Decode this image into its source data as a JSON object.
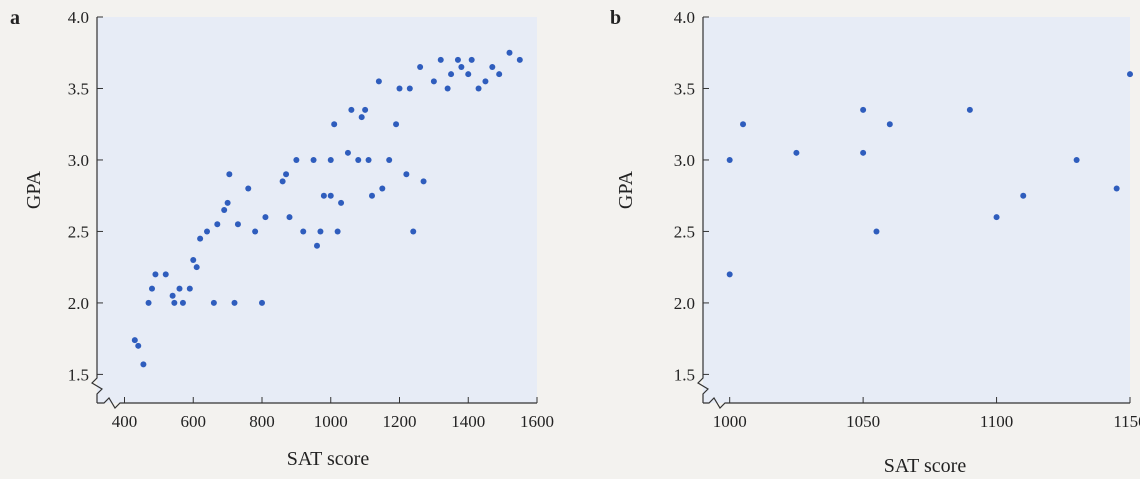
{
  "chart_data": [
    {
      "panel": "a",
      "type": "scatter",
      "xlabel": "SAT score",
      "ylabel": "GPA",
      "xlim": [
        320,
        1600
      ],
      "ylim": [
        1.3,
        4.0
      ],
      "xticks": [
        400,
        600,
        800,
        1000,
        1200,
        1400,
        1600
      ],
      "yticks": [
        1.5,
        2.0,
        2.5,
        3.0,
        3.5,
        4.0
      ],
      "ytick_labels": [
        "1.5",
        "2.0",
        "2.5",
        "3.0",
        "3.5",
        "4.0"
      ],
      "axis_break": "both",
      "grid": false,
      "points": [
        [
          430,
          1.74
        ],
        [
          440,
          1.7
        ],
        [
          455,
          1.57
        ],
        [
          470,
          2.0
        ],
        [
          480,
          2.1
        ],
        [
          490,
          2.2
        ],
        [
          520,
          2.2
        ],
        [
          540,
          2.05
        ],
        [
          545,
          2.0
        ],
        [
          560,
          2.1
        ],
        [
          570,
          2.0
        ],
        [
          590,
          2.1
        ],
        [
          600,
          2.3
        ],
        [
          610,
          2.25
        ],
        [
          620,
          2.45
        ],
        [
          640,
          2.5
        ],
        [
          660,
          2.0
        ],
        [
          670,
          2.55
        ],
        [
          690,
          2.65
        ],
        [
          700,
          2.7
        ],
        [
          705,
          2.9
        ],
        [
          720,
          2.0
        ],
        [
          730,
          2.55
        ],
        [
          760,
          2.8
        ],
        [
          780,
          2.5
        ],
        [
          800,
          2.0
        ],
        [
          810,
          2.6
        ],
        [
          860,
          2.85
        ],
        [
          870,
          2.9
        ],
        [
          880,
          2.6
        ],
        [
          900,
          3.0
        ],
        [
          920,
          2.5
        ],
        [
          950,
          3.0
        ],
        [
          960,
          2.4
        ],
        [
          970,
          2.5
        ],
        [
          980,
          2.75
        ],
        [
          1000,
          2.75
        ],
        [
          1000,
          3.0
        ],
        [
          1010,
          3.25
        ],
        [
          1020,
          2.5
        ],
        [
          1030,
          2.7
        ],
        [
          1050,
          3.05
        ],
        [
          1060,
          3.35
        ],
        [
          1080,
          3.0
        ],
        [
          1090,
          3.3
        ],
        [
          1100,
          3.35
        ],
        [
          1110,
          3.0
        ],
        [
          1120,
          2.75
        ],
        [
          1140,
          3.55
        ],
        [
          1150,
          2.8
        ],
        [
          1170,
          3.0
        ],
        [
          1190,
          3.25
        ],
        [
          1200,
          3.5
        ],
        [
          1220,
          2.9
        ],
        [
          1230,
          3.5
        ],
        [
          1240,
          2.5
        ],
        [
          1260,
          3.65
        ],
        [
          1270,
          2.85
        ],
        [
          1300,
          3.55
        ],
        [
          1320,
          3.7
        ],
        [
          1340,
          3.5
        ],
        [
          1350,
          3.6
        ],
        [
          1370,
          3.7
        ],
        [
          1380,
          3.65
        ],
        [
          1400,
          3.6
        ],
        [
          1410,
          3.7
        ],
        [
          1430,
          3.5
        ],
        [
          1450,
          3.55
        ],
        [
          1470,
          3.65
        ],
        [
          1490,
          3.6
        ],
        [
          1520,
          3.75
        ],
        [
          1550,
          3.7
        ]
      ]
    },
    {
      "panel": "b",
      "type": "scatter",
      "xlabel": "SAT score",
      "ylabel": "GPA",
      "xlim": [
        990,
        1150
      ],
      "ylim": [
        1.3,
        4.0
      ],
      "xticks": [
        1000,
        1050,
        1100,
        1150
      ],
      "yticks": [
        1.5,
        2.0,
        2.5,
        3.0,
        3.5,
        4.0
      ],
      "ytick_labels": [
        "1.5",
        "2.0",
        "2.5",
        "3.0",
        "3.5",
        "4.0"
      ],
      "axis_break": "both",
      "grid": false,
      "points": [
        [
          1000,
          2.2
        ],
        [
          1000,
          3.0
        ],
        [
          1005,
          3.25
        ],
        [
          1025,
          3.05
        ],
        [
          1050,
          3.05
        ],
        [
          1050,
          3.35
        ],
        [
          1055,
          2.5
        ],
        [
          1060,
          3.25
        ],
        [
          1090,
          3.35
        ],
        [
          1100,
          2.6
        ],
        [
          1110,
          2.75
        ],
        [
          1130,
          3.0
        ],
        [
          1145,
          2.8
        ],
        [
          1150,
          3.6
        ]
      ]
    }
  ]
}
